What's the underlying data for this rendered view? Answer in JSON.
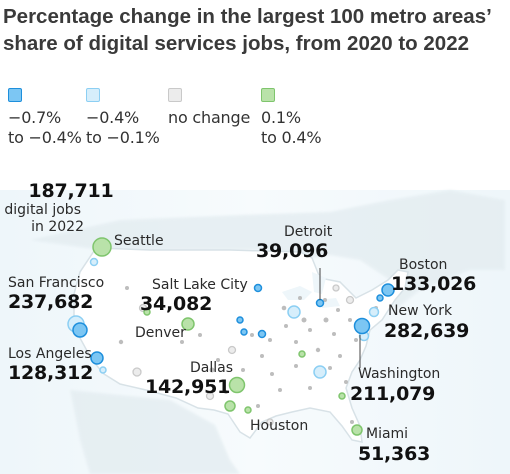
{
  "title_line1": "Percentage change in the largest 100 metro areas’",
  "title_line2": "share of digital services jobs, from 2020 to 2022",
  "legend": [
    {
      "line1": "−0.7%",
      "line2": "to −0.4%",
      "color": "#1e8fdc",
      "fill": "#7cc6f3"
    },
    {
      "line1": "−0.4%",
      "line2": "to −0.1%",
      "color": "#8ccff3",
      "fill": "#d6eefb"
    },
    {
      "line1": "no change",
      "line2": "",
      "color": "#c9c9c9",
      "fill": "#ececec"
    },
    {
      "line1": "0.1%",
      "line2": "to 0.4%",
      "color": "#7fc56d",
      "fill": "#b9e2a9"
    }
  ],
  "annotation": {
    "value": "187,711",
    "line1": "digital jobs",
    "line2": "in 2022"
  },
  "cities": [
    {
      "name": "Seattle",
      "value": ""
    },
    {
      "name": "San Francisco",
      "value": "237,682"
    },
    {
      "name": "Los Angeles",
      "value": "128,312"
    },
    {
      "name": "Salt Lake City",
      "value": "34,082"
    },
    {
      "name": "Denver",
      "value": ""
    },
    {
      "name": "Dallas",
      "value": "142,951"
    },
    {
      "name": "Houston",
      "value": ""
    },
    {
      "name": "Detroit",
      "value": "39,096"
    },
    {
      "name": "Boston",
      "value": "133,026"
    },
    {
      "name": "New York",
      "value": "282,639"
    },
    {
      "name": "Washington",
      "value": "211,079"
    },
    {
      "name": "Miami",
      "value": "51,363"
    }
  ]
}
